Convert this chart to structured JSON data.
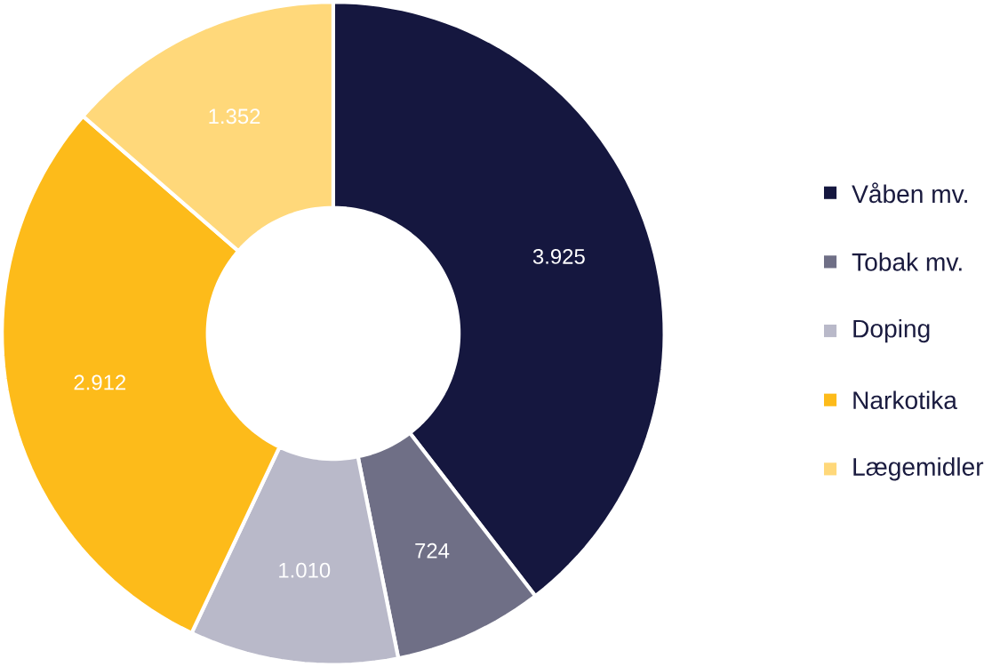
{
  "chart_data": {
    "type": "donut",
    "categories": [
      "Våben mv.",
      "Tobak mv.",
      "Doping",
      "Narkotika",
      "Lægemidler"
    ],
    "values": [
      3925,
      724,
      1010,
      2912,
      1352
    ],
    "value_labels": [
      "3.925",
      "724",
      "1.010",
      "2.912",
      "1.352"
    ],
    "colors": [
      "#15173f",
      "#6f6f86",
      "#b9b9c9",
      "#fdbb1a",
      "#ffd87a"
    ],
    "legend": "right"
  }
}
